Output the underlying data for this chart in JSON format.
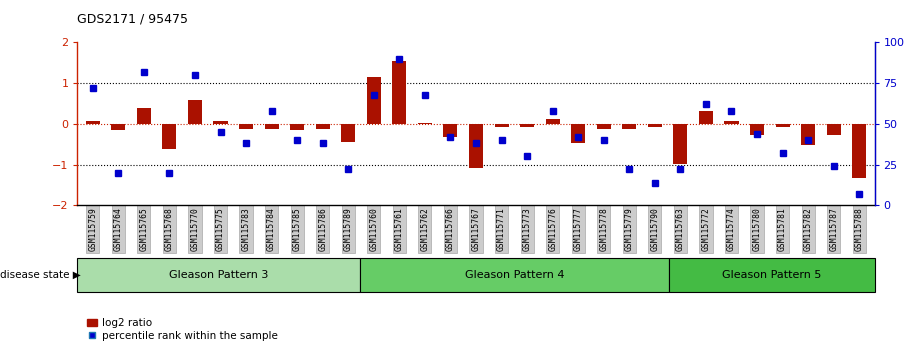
{
  "title": "GDS2171 / 95475",
  "samples": [
    "GSM115759",
    "GSM115764",
    "GSM115765",
    "GSM115768",
    "GSM115770",
    "GSM115775",
    "GSM115783",
    "GSM115784",
    "GSM115785",
    "GSM115786",
    "GSM115789",
    "GSM115760",
    "GSM115761",
    "GSM115762",
    "GSM115766",
    "GSM115767",
    "GSM115771",
    "GSM115773",
    "GSM115776",
    "GSM115777",
    "GSM115778",
    "GSM115779",
    "GSM115790",
    "GSM115763",
    "GSM115772",
    "GSM115774",
    "GSM115780",
    "GSM115781",
    "GSM115782",
    "GSM115787",
    "GSM115788"
  ],
  "log2_ratio": [
    0.08,
    -0.15,
    0.38,
    -0.62,
    0.58,
    0.08,
    -0.12,
    -0.12,
    -0.15,
    -0.12,
    -0.45,
    1.15,
    1.55,
    0.02,
    -0.32,
    -1.08,
    -0.08,
    -0.08,
    0.12,
    -0.48,
    -0.12,
    -0.12,
    -0.08,
    -0.98,
    0.32,
    0.08,
    -0.28,
    -0.08,
    -0.52,
    -0.28,
    -1.32
  ],
  "percentile": [
    72,
    20,
    82,
    20,
    80,
    45,
    38,
    58,
    40,
    38,
    22,
    68,
    90,
    68,
    42,
    38,
    40,
    30,
    58,
    42,
    40,
    22,
    14,
    22,
    62,
    58,
    44,
    32,
    40,
    24,
    7
  ],
  "groups": [
    {
      "label": "Gleason Pattern 3",
      "start": 0,
      "end": 11,
      "color": "#AADDAA"
    },
    {
      "label": "Gleason Pattern 4",
      "start": 11,
      "end": 23,
      "color": "#66CC66"
    },
    {
      "label": "Gleason Pattern 5",
      "start": 23,
      "end": 31,
      "color": "#44BB44"
    }
  ],
  "bar_color": "#AA1100",
  "dot_color": "#0000CC",
  "bar_width": 0.55
}
